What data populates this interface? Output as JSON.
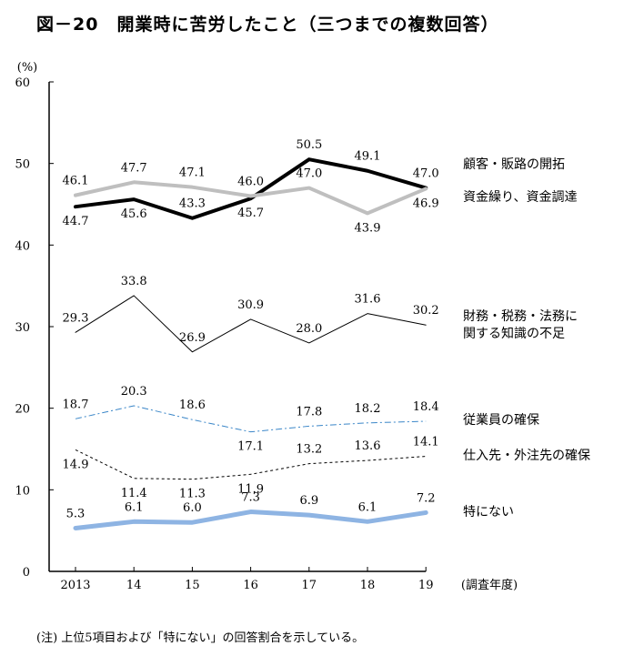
{
  "title": "図－20　開業時に苦労したこと（三つまでの複数回答）",
  "note": "(注) 上位5項目および「特にない」の回答割合を示している。",
  "chart_data": {
    "type": "line",
    "y_unit": "(%)",
    "x_axis_title": "(調査年度)",
    "categories": [
      "2013",
      "14",
      "15",
      "16",
      "17",
      "18",
      "19"
    ],
    "ylim": [
      0,
      60
    ],
    "yticks": [
      0,
      10,
      20,
      30,
      40,
      50,
      60
    ],
    "grid": false,
    "series": [
      {
        "name": "顧客・販路の開拓",
        "values": [
          44.7,
          45.6,
          43.3,
          45.7,
          50.5,
          49.1,
          47.0
        ],
        "color": "#000000",
        "style": "solid",
        "width": 4
      },
      {
        "name": "資金繰り、資金調達",
        "values": [
          46.1,
          47.7,
          47.1,
          46.0,
          47.0,
          43.9,
          46.9
        ],
        "color": "#bfbfbf",
        "style": "solid",
        "width": 4
      },
      {
        "name": "財務・税務・法務に関する知識の不足",
        "name_lines": [
          "財務・税務・法務に",
          "関する知識の不足"
        ],
        "values": [
          29.3,
          33.8,
          26.9,
          30.9,
          28.0,
          31.6,
          30.2
        ],
        "color": "#000000",
        "style": "solid",
        "width": 1
      },
      {
        "name": "従業員の確保",
        "values": [
          18.7,
          20.3,
          18.6,
          17.1,
          17.8,
          18.2,
          18.4
        ],
        "color": "#3a86c8",
        "style": "dashdot",
        "width": 1
      },
      {
        "name": "仕入先・外注先の確保",
        "values": [
          14.9,
          11.4,
          11.3,
          11.9,
          13.2,
          13.6,
          14.1
        ],
        "color": "#000000",
        "style": "dotted",
        "width": 1
      },
      {
        "name": "特にない",
        "values": [
          5.3,
          6.1,
          6.0,
          7.3,
          6.9,
          6.1,
          7.2
        ],
        "color": "#8eb4e3",
        "style": "solid",
        "width": 5
      }
    ]
  }
}
